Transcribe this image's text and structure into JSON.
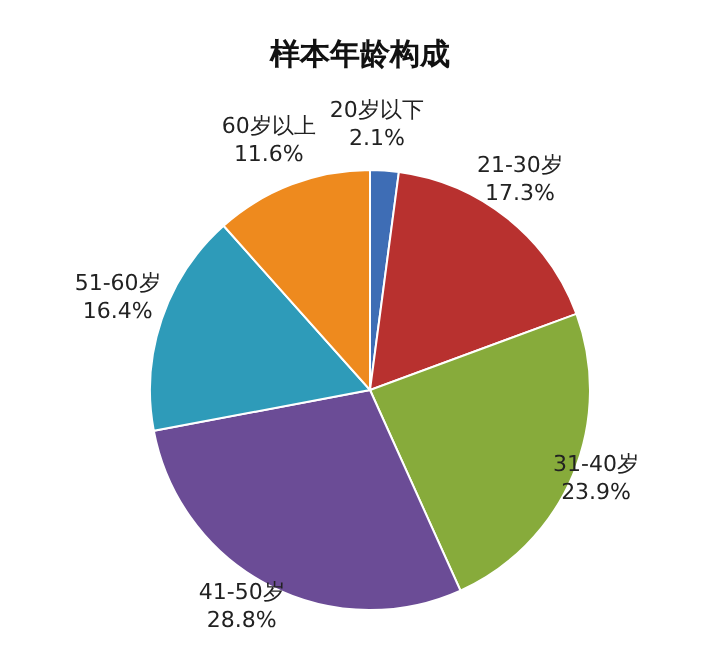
{
  "chart_data": {
    "type": "pie",
    "title": "样本年龄构成",
    "categories": [
      "20岁以下",
      "21-30岁",
      "31-40岁",
      "41-50岁",
      "51-60岁",
      "60岁以上"
    ],
    "values": [
      2.1,
      17.3,
      23.9,
      28.8,
      16.4,
      11.6
    ],
    "value_labels": [
      "2.1%",
      "17.3%",
      "23.9%",
      "28.8%",
      "16.4%",
      "11.6%"
    ],
    "colors": [
      "#3e6db5",
      "#b8312f",
      "#87ab3b",
      "#6b4c96",
      "#2e9bb9",
      "#ee8a1e"
    ],
    "legend": false
  }
}
